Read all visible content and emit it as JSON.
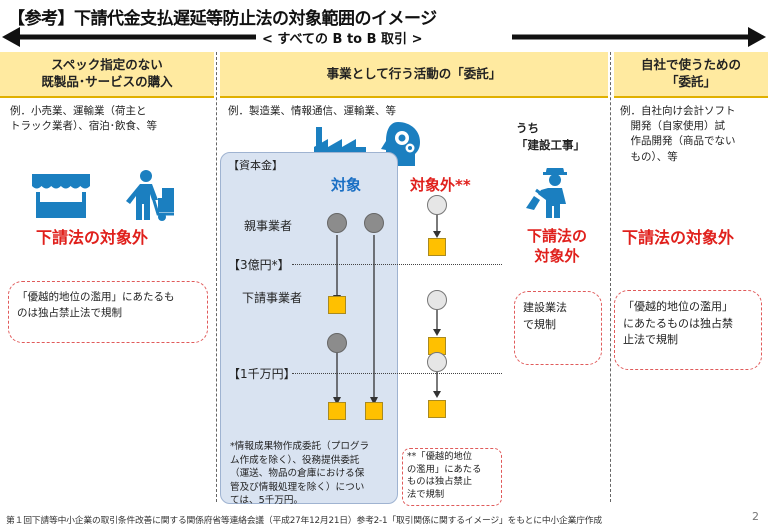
{
  "title": "【参考】下請代金支払遅延等防止法の対象範囲のイメージ",
  "scope_arrow_label": "< すべての B to B 取引 >",
  "col1": {
    "header": "スペック指定のない\n既製品･サービスの購入",
    "example": "例．小売業、運輸業（荷主と\nトラック業者）、宿泊･飲食、等",
    "status": "下請法の対象外",
    "note": "「優越的地位の濫用」にあたるも\nのは独占禁止法で規制"
  },
  "col2": {
    "header": "事業として行う活動の「委託」",
    "example": "例．製造業、情報通信、運輸業、等",
    "capital_label": "【資本金】",
    "target_label": "対象",
    "nontarget_label": "対象外**",
    "parent_label": "親事業者",
    "tier1": "【3億円*】",
    "sub_label": "下請事業者",
    "tier2": "【1千万円】",
    "footnote_star": "*情報成果物作成委託（プログラ\nム作成を除く）、役務提供委託\n（運送、物品の倉庫における保\n管及び情報処理を除く）につい\nては、5千万円。",
    "footnote_dstar": "**「優越的地位\nの濫用」にあたる\nものは独占禁止\n法で規制"
  },
  "col3": {
    "header": "うち\n「建設工事」",
    "status": "下請法の\n対象外",
    "note": "建設業法\nで規制"
  },
  "col4": {
    "header": "自社で使うための\n「委託」",
    "example": "例．自社向け会計ソフト\n　開発（自家使用）試\n　作品開発（商品でない\n　もの）、等",
    "status": "下請法の対象外",
    "note": "「優越的地位の濫用」\nにあたるものは独占禁\n止法で規制"
  },
  "footer": "第１回下請等中小企業の取引条件改善に関する関係府省等連絡会議（平成27年12月21日）参考2-1「取引関係に関するイメージ」をもとに中小企業庁作成",
  "page_number": "2",
  "icons": [
    "arrow-left-head-icon",
    "arrow-right-head-icon",
    "market-stall-icon",
    "delivery-worker-icon",
    "factory-icon",
    "head-gears-icon",
    "construction-worker-icon"
  ],
  "colors": {
    "header_fill": "#ffeaa0",
    "red": "#e0201c",
    "blue": "#1a6fc4",
    "icon_blue": "#1b7fc0",
    "box_blue": "#d9e3f1",
    "square": "#ffc000"
  }
}
